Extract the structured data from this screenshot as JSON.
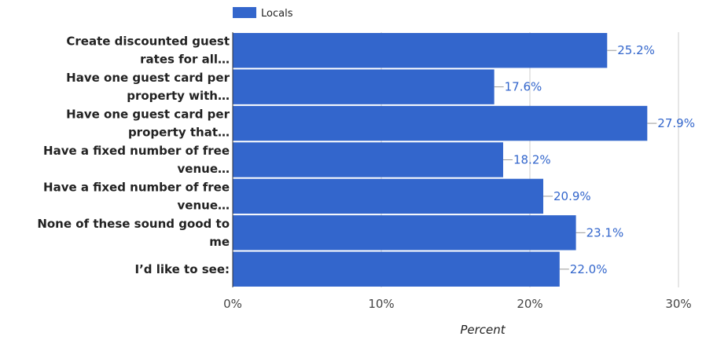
{
  "chart_data": {
    "type": "bar",
    "orientation": "horizontal",
    "categories": [
      [
        "Create discounted guest",
        "rates for all…"
      ],
      [
        "Have one guest card per",
        "property with…"
      ],
      [
        "Have one guest card per",
        "property that…"
      ],
      [
        "Have a fixed number of free",
        "venue…"
      ],
      [
        "Have a fixed number of free",
        "venue…"
      ],
      [
        "None of these sound good to",
        "me"
      ],
      [
        "I’d like to see:"
      ]
    ],
    "series": [
      {
        "name": "Locals",
        "values": [
          25.2,
          17.6,
          27.9,
          18.2,
          20.9,
          23.1,
          22.0
        ],
        "color": "#3366cc"
      }
    ],
    "data_labels": [
      "25.2%",
      "17.6%",
      "27.9%",
      "18.2%",
      "20.9%",
      "23.1%",
      "22.0%"
    ],
    "xlim": [
      0,
      30
    ],
    "xticks": [
      0,
      10,
      20,
      30
    ],
    "xtick_labels": [
      "0%",
      "10%",
      "20%",
      "30%"
    ],
    "xlabel": "Percent",
    "legend_position": "top-left",
    "grid": true
  }
}
